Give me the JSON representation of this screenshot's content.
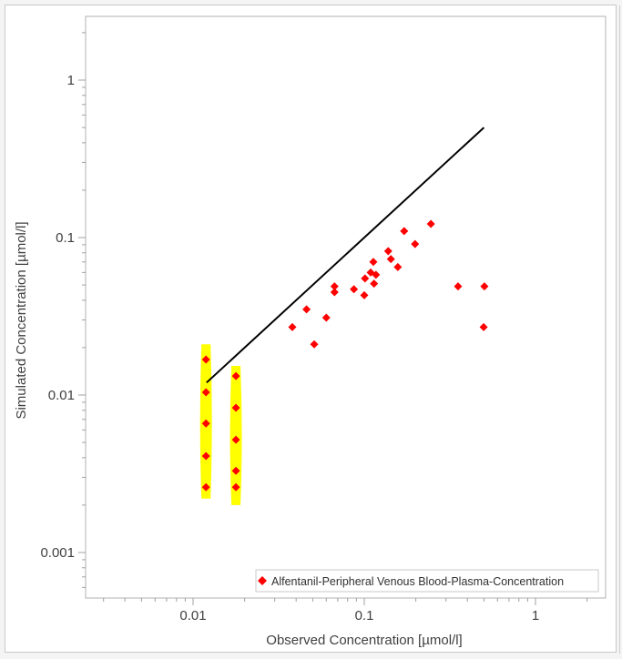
{
  "chart_data": {
    "type": "scatter",
    "title": "",
    "xlabel": "Observed Concentration [µmol/l]",
    "ylabel": "Simulated Concentration [µmol/l]",
    "xscale": "log",
    "yscale": "log",
    "xlim": [
      0.0025,
      2.7
    ],
    "ylim": [
      0.0004,
      2.5
    ],
    "x_tick_labels": [
      "0.01",
      "0.1",
      "1"
    ],
    "y_tick_labels": [
      "0.001",
      "0.01",
      "0.1",
      "1"
    ],
    "grid": false,
    "legend_position": "lower right",
    "series": [
      {
        "name": "Alfentanil-Peripheral Venous Blood-Plasma-Concentration",
        "marker": "diamond",
        "color": "#ff0000",
        "points": [
          [
            0.0119,
            0.0168
          ],
          [
            0.0119,
            0.0104
          ],
          [
            0.0119,
            0.0066
          ],
          [
            0.0119,
            0.0041
          ],
          [
            0.0119,
            0.0026
          ],
          [
            0.0178,
            0.0132
          ],
          [
            0.0178,
            0.0083
          ],
          [
            0.0178,
            0.0052
          ],
          [
            0.0178,
            0.0033
          ],
          [
            0.0178,
            0.0026
          ],
          [
            0.038,
            0.027
          ],
          [
            0.046,
            0.035
          ],
          [
            0.051,
            0.021
          ],
          [
            0.06,
            0.031
          ],
          [
            0.067,
            0.049
          ],
          [
            0.067,
            0.045
          ],
          [
            0.087,
            0.047
          ],
          [
            0.1,
            0.043
          ],
          [
            0.101,
            0.055
          ],
          [
            0.109,
            0.06
          ],
          [
            0.113,
            0.07
          ],
          [
            0.114,
            0.051
          ],
          [
            0.117,
            0.058
          ],
          [
            0.138,
            0.082
          ],
          [
            0.143,
            0.073
          ],
          [
            0.157,
            0.065
          ],
          [
            0.171,
            0.11
          ],
          [
            0.198,
            0.091
          ],
          [
            0.245,
            0.122
          ],
          [
            0.353,
            0.049
          ],
          [
            0.503,
            0.049
          ],
          [
            0.498,
            0.027
          ]
        ]
      }
    ],
    "reference_line": {
      "name": "identity",
      "color": "#000000",
      "from": [
        0.012,
        0.012
      ],
      "to": [
        0.5,
        0.5
      ]
    },
    "highlight_bands": [
      {
        "color": "#ffff00",
        "x": 0.0119,
        "y_range": [
          0.0022,
          0.021
        ]
      },
      {
        "color": "#ffff00",
        "x": 0.0178,
        "y_range": [
          0.002,
          0.0153
        ]
      }
    ]
  },
  "legend": {
    "label": "Alfentanil-Peripheral Venous Blood-Plasma-Concentration"
  },
  "axes": {
    "x_title": "Observed Concentration [µmol/l]",
    "y_title": "Simulated Concentration [µmol/l]"
  }
}
